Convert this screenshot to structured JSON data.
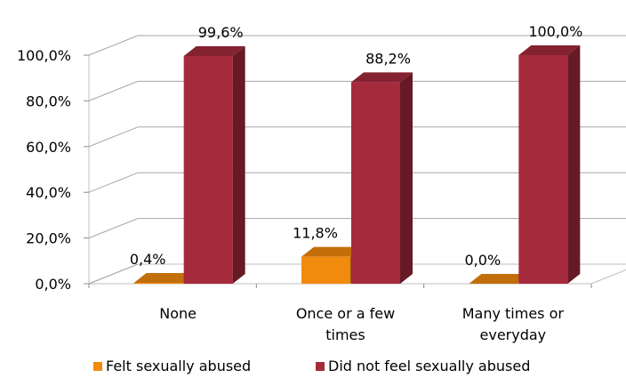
{
  "chart_data": {
    "type": "bar",
    "title": "",
    "xlabel": "",
    "ylabel": "",
    "ylim": [
      0,
      100
    ],
    "yticks": [
      "0,0%",
      "20,0%",
      "40,0%",
      "60,0%",
      "80,0%",
      "100,0%"
    ],
    "ytick_values": [
      0,
      20,
      40,
      60,
      80,
      100
    ],
    "categories": [
      [
        "None"
      ],
      [
        "Once or a few",
        "times"
      ],
      [
        "Many times or",
        "everyday"
      ]
    ],
    "series": [
      {
        "name": "Felt sexually abused",
        "color": "#F28A0D",
        "values": [
          0.4,
          11.8,
          0.0
        ],
        "labels": [
          "0,4%",
          "11,8%",
          "0,0%"
        ]
      },
      {
        "name": "Did not feel sexually abused",
        "color": "#A52A3C",
        "values": [
          99.6,
          88.2,
          100.0
        ],
        "labels": [
          "99,6%",
          "88,2%",
          "100,0%"
        ]
      }
    ],
    "grid": true,
    "legend_position": "bottom",
    "style": "3d-column"
  }
}
